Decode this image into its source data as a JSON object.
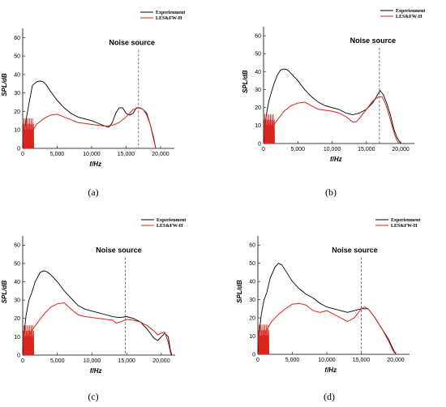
{
  "chart_data": [
    {
      "type": "line",
      "panel_label": "(a)",
      "xlabel": "f/Hz",
      "ylabel": "SPL/dB",
      "xlim": [
        0,
        22000
      ],
      "ylim": [
        0,
        65
      ],
      "x_ticks": [
        0,
        5000,
        10000,
        15000,
        20000
      ],
      "x_tick_labels": [
        "0",
        "5,000",
        "10,000",
        "15,000",
        "20,000"
      ],
      "y_ticks": [
        0,
        10,
        20,
        30,
        40,
        50,
        60
      ],
      "annotation": {
        "text": "Noise source",
        "x": 16800
      },
      "legend": {
        "position": "top-right",
        "entries": [
          "Experienment",
          "LES&FW-H"
        ]
      },
      "series": [
        {
          "name": "Experienment",
          "color": "#000000",
          "points": [
            [
              0,
              0
            ],
            [
              200,
              8
            ],
            [
              400,
              12
            ],
            [
              600,
              18
            ],
            [
              800,
              22
            ],
            [
              1000,
              26
            ],
            [
              1200,
              30
            ],
            [
              1400,
              34
            ],
            [
              1700,
              35
            ],
            [
              2000,
              36
            ],
            [
              2500,
              36.5
            ],
            [
              3000,
              36
            ],
            [
              3500,
              34
            ],
            [
              4000,
              31
            ],
            [
              5000,
              26
            ],
            [
              6000,
              22
            ],
            [
              7000,
              19
            ],
            [
              8000,
              17
            ],
            [
              9000,
              16
            ],
            [
              10000,
              15
            ],
            [
              11000,
              13.5
            ],
            [
              12000,
              12
            ],
            [
              12500,
              11.5
            ],
            [
              13000,
              14
            ],
            [
              13500,
              19
            ],
            [
              14000,
              22
            ],
            [
              14500,
              22
            ],
            [
              15000,
              19
            ],
            [
              15500,
              18
            ],
            [
              16000,
              19
            ],
            [
              16500,
              22
            ],
            [
              17000,
              22
            ],
            [
              17500,
              21
            ],
            [
              18000,
              19
            ],
            [
              18500,
              13
            ],
            [
              19000,
              5
            ],
            [
              19300,
              0
            ]
          ]
        },
        {
          "name": "LES&FW-H",
          "color": "#d9251e",
          "points": [
            [
              0,
              0
            ],
            [
              300,
              2
            ],
            [
              600,
              4
            ],
            [
              1000,
              7
            ],
            [
              1500,
              10
            ],
            [
              2000,
              13
            ],
            [
              3000,
              16
            ],
            [
              4000,
              18
            ],
            [
              5000,
              18.5
            ],
            [
              6000,
              17
            ],
            [
              7000,
              15.5
            ],
            [
              8000,
              14
            ],
            [
              9000,
              13.5
            ],
            [
              10000,
              13
            ],
            [
              11000,
              12.5
            ],
            [
              12000,
              12
            ],
            [
              13000,
              12.5
            ],
            [
              14000,
              14
            ],
            [
              15000,
              17
            ],
            [
              15500,
              19
            ],
            [
              16000,
              21
            ],
            [
              16800,
              22
            ],
            [
              17500,
              21
            ],
            [
              18000,
              18
            ],
            [
              18500,
              13
            ],
            [
              19000,
              6
            ],
            [
              19300,
              0
            ]
          ]
        }
      ]
    },
    {
      "type": "line",
      "panel_label": "(b)",
      "xlabel": "f/Hz",
      "ylabel": "SPL/dB",
      "xlim": [
        0,
        22000
      ],
      "ylim": [
        0,
        65
      ],
      "x_ticks": [
        0,
        5000,
        10000,
        15000,
        20000
      ],
      "x_tick_labels": [
        "0",
        "5,000",
        "10,000",
        "15,000",
        "20,000"
      ],
      "y_ticks": [
        0,
        10,
        20,
        30,
        40,
        50,
        60
      ],
      "annotation": {
        "text": "Noise source",
        "x": 16900
      },
      "legend": {
        "position": "top-right",
        "entries": [
          "Experienment",
          "LES&FW-H"
        ]
      },
      "series": [
        {
          "name": "Experienment",
          "color": "#000000",
          "points": [
            [
              0,
              0
            ],
            [
              200,
              10
            ],
            [
              500,
              18
            ],
            [
              800,
              24
            ],
            [
              1100,
              28
            ],
            [
              1500,
              33
            ],
            [
              2000,
              38
            ],
            [
              2500,
              41
            ],
            [
              3000,
              41.5
            ],
            [
              3500,
              41
            ],
            [
              4000,
              39
            ],
            [
              5000,
              35
            ],
            [
              6000,
              30
            ],
            [
              7000,
              26
            ],
            [
              8000,
              23
            ],
            [
              9000,
              21
            ],
            [
              10000,
              20
            ],
            [
              11000,
              19
            ],
            [
              12000,
              17
            ],
            [
              13000,
              16
            ],
            [
              14000,
              17
            ],
            [
              15000,
              19
            ],
            [
              16000,
              23
            ],
            [
              16600,
              27
            ],
            [
              17000,
              29.5
            ],
            [
              17500,
              27
            ],
            [
              18000,
              22
            ],
            [
              18500,
              16
            ],
            [
              19000,
              8
            ],
            [
              19500,
              3
            ],
            [
              20000,
              0
            ]
          ]
        },
        {
          "name": "LES&FW-H",
          "color": "#d9251e",
          "points": [
            [
              0,
              0
            ],
            [
              300,
              3
            ],
            [
              700,
              6
            ],
            [
              1200,
              9
            ],
            [
              2000,
              13
            ],
            [
              3000,
              18
            ],
            [
              4000,
              21
            ],
            [
              5000,
              22.5
            ],
            [
              6000,
              23
            ],
            [
              7000,
              21
            ],
            [
              8000,
              19
            ],
            [
              9000,
              18.5
            ],
            [
              10000,
              18
            ],
            [
              11000,
              17
            ],
            [
              12000,
              15
            ],
            [
              13000,
              12
            ],
            [
              13500,
              12
            ],
            [
              14000,
              14
            ],
            [
              15000,
              19
            ],
            [
              16000,
              24
            ],
            [
              16800,
              26
            ],
            [
              17300,
              26
            ],
            [
              17800,
              22
            ],
            [
              18300,
              16
            ],
            [
              18800,
              9
            ],
            [
              19300,
              3
            ],
            [
              19700,
              0
            ]
          ]
        }
      ]
    },
    {
      "type": "line",
      "panel_label": "(c)",
      "xlabel": "f/Hz",
      "ylabel": "SPL/dB",
      "xlim": [
        0,
        22000
      ],
      "ylim": [
        0,
        65
      ],
      "x_ticks": [
        0,
        5000,
        10000,
        15000,
        20000
      ],
      "x_tick_labels": [
        "0",
        "5,000",
        "10,000",
        "15,000",
        "20,000"
      ],
      "y_ticks": [
        0,
        10,
        20,
        30,
        40,
        50,
        60
      ],
      "annotation": {
        "text": "Noise source",
        "x": 14800
      },
      "legend": {
        "position": "top-right",
        "entries": [
          "Experienment",
          "LES&FW-H"
        ]
      },
      "series": [
        {
          "name": "Experienment",
          "color": "#000000",
          "points": [
            [
              0,
              0
            ],
            [
              200,
              12
            ],
            [
              500,
              22
            ],
            [
              900,
              30
            ],
            [
              1300,
              34
            ],
            [
              1800,
              40
            ],
            [
              2500,
              45
            ],
            [
              3000,
              46
            ],
            [
              3500,
              45.5
            ],
            [
              4000,
              44
            ],
            [
              5000,
              40
            ],
            [
              6000,
              35
            ],
            [
              7000,
              31
            ],
            [
              8000,
              27
            ],
            [
              9000,
              25
            ],
            [
              10000,
              24
            ],
            [
              11000,
              23
            ],
            [
              12000,
              22
            ],
            [
              13000,
              21
            ],
            [
              14000,
              20.5
            ],
            [
              15000,
              21
            ],
            [
              16000,
              20
            ],
            [
              17000,
              18
            ],
            [
              18000,
              14
            ],
            [
              19000,
              9
            ],
            [
              19500,
              8
            ],
            [
              20000,
              10
            ],
            [
              20500,
              12
            ],
            [
              21000,
              10
            ],
            [
              21300,
              3
            ],
            [
              21500,
              0
            ]
          ]
        },
        {
          "name": "LES&FW-H",
          "color": "#d9251e",
          "points": [
            [
              0,
              0
            ],
            [
              300,
              4
            ],
            [
              700,
              9
            ],
            [
              1200,
              13
            ],
            [
              2000,
              17
            ],
            [
              3000,
              22
            ],
            [
              4000,
              26
            ],
            [
              5000,
              28
            ],
            [
              6000,
              28.5
            ],
            [
              7000,
              25
            ],
            [
              8000,
              22
            ],
            [
              9000,
              21
            ],
            [
              10000,
              20.5
            ],
            [
              11000,
              20
            ],
            [
              12000,
              19.5
            ],
            [
              13000,
              19
            ],
            [
              13500,
              17.5
            ],
            [
              14000,
              18
            ],
            [
              15000,
              19.5
            ],
            [
              16000,
              19
            ],
            [
              17000,
              18
            ],
            [
              18000,
              16
            ],
            [
              19000,
              13
            ],
            [
              19500,
              11
            ],
            [
              20000,
              12
            ],
            [
              20500,
              12.5
            ],
            [
              21000,
              7
            ],
            [
              21400,
              0
            ]
          ]
        }
      ]
    },
    {
      "type": "line",
      "panel_label": "(d)",
      "xlabel": "f/Hz",
      "ylabel": "SPL/dB",
      "xlim": [
        0,
        22000
      ],
      "ylim": [
        0,
        65
      ],
      "x_ticks": [
        0,
        5000,
        10000,
        15000,
        20000
      ],
      "x_tick_labels": [
        "0",
        "5,000",
        "10,000",
        "15,000",
        "20,000"
      ],
      "y_ticks": [
        0,
        10,
        20,
        30,
        40,
        50,
        60
      ],
      "annotation": {
        "text": "Noise source",
        "x": 15000
      },
      "legend": {
        "position": "top-right",
        "entries": [
          "Experienment",
          "LES&FW-H"
        ]
      },
      "series": [
        {
          "name": "Experienment",
          "color": "#000000",
          "points": [
            [
              0,
              0
            ],
            [
              200,
              12
            ],
            [
              500,
              22
            ],
            [
              900,
              30
            ],
            [
              1300,
              34
            ],
            [
              1800,
              42
            ],
            [
              2500,
              48
            ],
            [
              3000,
              50
            ],
            [
              3500,
              49
            ],
            [
              4000,
              46
            ],
            [
              5000,
              40
            ],
            [
              6000,
              36
            ],
            [
              7000,
              33
            ],
            [
              8000,
              31
            ],
            [
              9000,
              28
            ],
            [
              10000,
              26
            ],
            [
              11000,
              25
            ],
            [
              12000,
              24
            ],
            [
              13000,
              23
            ],
            [
              14000,
              24
            ],
            [
              15000,
              25
            ],
            [
              16000,
              25
            ],
            [
              17000,
              20
            ],
            [
              18000,
              14
            ],
            [
              19000,
              8
            ],
            [
              19600,
              3
            ],
            [
              20000,
              0
            ]
          ]
        },
        {
          "name": "LES&FW-H",
          "color": "#d9251e",
          "points": [
            [
              0,
              0
            ],
            [
              300,
              4
            ],
            [
              700,
              9
            ],
            [
              1200,
              13
            ],
            [
              2000,
              18
            ],
            [
              3000,
              22
            ],
            [
              4000,
              25
            ],
            [
              5000,
              27.5
            ],
            [
              6000,
              28
            ],
            [
              7000,
              27
            ],
            [
              8000,
              24
            ],
            [
              9000,
              23
            ],
            [
              10000,
              24
            ],
            [
              11000,
              22
            ],
            [
              12000,
              20
            ],
            [
              13000,
              18
            ],
            [
              14000,
              20
            ],
            [
              15000,
              25
            ],
            [
              15500,
              26
            ],
            [
              16000,
              25
            ],
            [
              17000,
              20
            ],
            [
              18000,
              14
            ],
            [
              19000,
              7
            ],
            [
              19600,
              2
            ],
            [
              20000,
              0
            ]
          ]
        }
      ]
    }
  ]
}
